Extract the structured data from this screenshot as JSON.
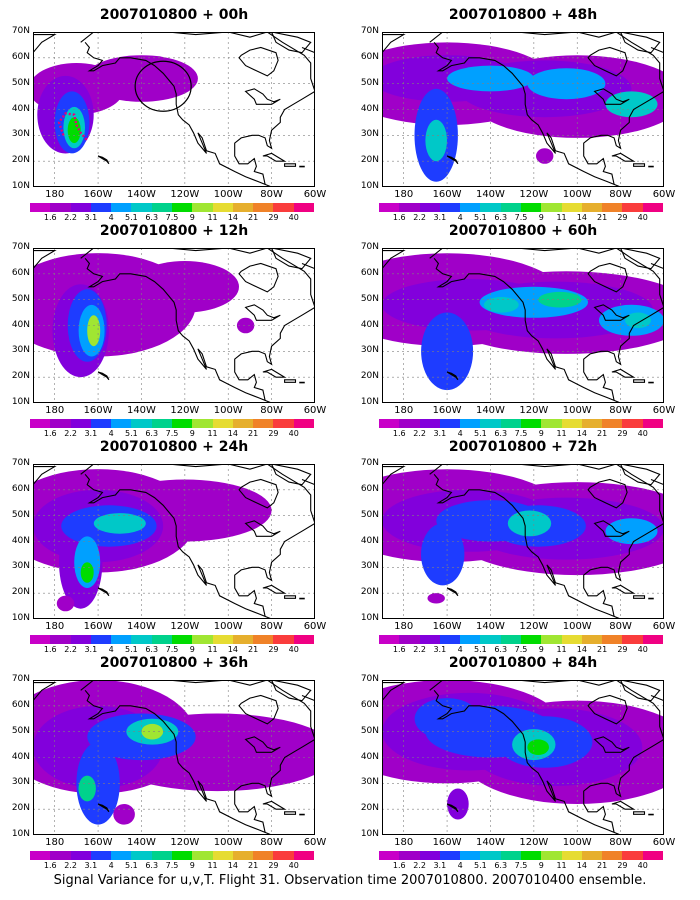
{
  "caption": "Signal Variance for u,v,T. Flight 31. Observation time 2007010800. 2007010400 ensemble.",
  "panels": [
    {
      "title": "2007010800 + 00h",
      "lead": "00h"
    },
    {
      "title": "2007010800 + 48h",
      "lead": "48h"
    },
    {
      "title": "2007010800 + 12h",
      "lead": "12h"
    },
    {
      "title": "2007010800 + 60h",
      "lead": "60h"
    },
    {
      "title": "2007010800 + 24h",
      "lead": "24h"
    },
    {
      "title": "2007010800 + 72h",
      "lead": "72h"
    },
    {
      "title": "2007010800 + 36h",
      "lead": "36h"
    },
    {
      "title": "2007010800 + 84h",
      "lead": "84h"
    }
  ],
  "axes": {
    "lat_labels": [
      "70N",
      "60N",
      "50N",
      "40N",
      "30N",
      "20N",
      "10N"
    ],
    "lon_labels": [
      "180",
      "160W",
      "140W",
      "120W",
      "100W",
      "80W",
      "60W"
    ],
    "lat_range": [
      10,
      70
    ],
    "lon_range": [
      -190,
      -60
    ],
    "grid": true
  },
  "colorbar": {
    "labels": [
      "1.6",
      "2.2",
      "3.1",
      "4",
      "5.1",
      "6.3",
      "7.5",
      "9",
      "11",
      "14",
      "21",
      "29",
      "40"
    ],
    "colors": [
      "#a000c8",
      "#8200dc",
      "#1e3cff",
      "#00a0ff",
      "#00c8c8",
      "#00d28c",
      "#00dc00",
      "#a0e632",
      "#e6dc32",
      "#e6af2d",
      "#f08228",
      "#fa3c3c",
      "#f00082"
    ]
  },
  "map_colors": {
    "land_outline": "#000000",
    "grid": "#808080",
    "observation_marker": "#e6007a"
  }
}
